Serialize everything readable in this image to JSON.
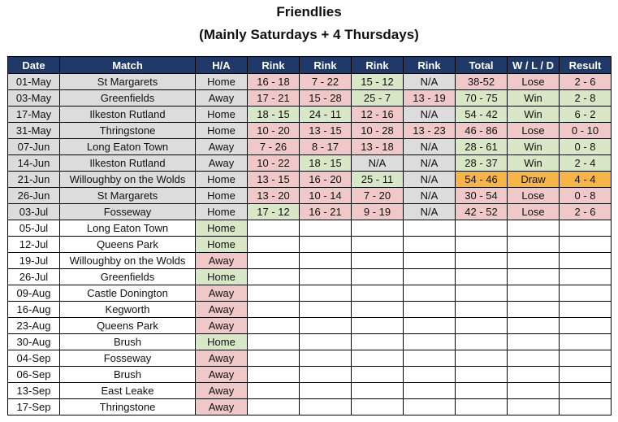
{
  "title": "Friendlies",
  "subtitle": "(Mainly Saturdays + 4 Thursdays)",
  "columns": [
    "Date",
    "Match",
    "H/A",
    "Rink",
    "Rink",
    "Rink",
    "Rink",
    "Total",
    "W / L / D",
    "Result"
  ],
  "played": [
    {
      "date": "01-May",
      "match": "St Margarets",
      "ha": "Home",
      "r1": "16 - 18",
      "r2": "7 - 22",
      "r3": "15 - 12",
      "r4": "N/A",
      "total": "38-52",
      "wld": "Lose",
      "result": "2 - 6"
    },
    {
      "date": "03-May",
      "match": "Greenfields",
      "ha": "Away",
      "r1": "17 - 21",
      "r2": "15 - 28",
      "r3": "25 - 7",
      "r4": "13 - 19",
      "total": "70 - 75",
      "wld": "Win",
      "result": "2 - 8"
    },
    {
      "date": "17-May",
      "match": "Ilkeston Rutland",
      "ha": "Home",
      "r1": "18 - 15",
      "r2": "24 - 11",
      "r3": "12 - 16",
      "r4": "N/A",
      "total": "54 - 42",
      "wld": "Win",
      "result": "6 - 2"
    },
    {
      "date": "31-May",
      "match": "Thringstone",
      "ha": "Home",
      "r1": "10 - 20",
      "r2": "13 - 15",
      "r3": "10 - 28",
      "r4": "13 - 23",
      "total": "46 - 86",
      "wld": "Lose",
      "result": "0 - 10"
    },
    {
      "date": "07-Jun",
      "match": "Long Eaton Town",
      "ha": "Away",
      "r1": "7 - 26",
      "r2": "8 - 17",
      "r3": "13 - 18",
      "r4": "N/A",
      "total": "28 - 61",
      "wld": "Win",
      "result": "0 - 8"
    },
    {
      "date": "14-Jun",
      "match": "Ilkeston Rutland",
      "ha": "Away",
      "r1": "10 - 22",
      "r2": "18 - 15",
      "r3": "N/A",
      "r4": "N/A",
      "total": "28 - 37",
      "wld": "Win",
      "result": "2 - 4"
    },
    {
      "date": "21-Jun",
      "match": "Willoughby on the Wolds",
      "ha": "Home",
      "r1": "13 - 15",
      "r2": "16 - 20",
      "r3": "25 - 11",
      "r4": "N/A",
      "total": "54 - 46",
      "wld": "Draw",
      "result": "4 - 4"
    },
    {
      "date": "26-Jun",
      "match": "St Margarets",
      "ha": "Home",
      "r1": "13 - 20",
      "r2": "10 - 14",
      "r3": "7 - 20",
      "r4": "N/A",
      "total": "30 - 54",
      "wld": "Lose",
      "result": "0 - 8"
    },
    {
      "date": "03-Jul",
      "match": "Fosseway",
      "ha": "Home",
      "r1": "17 - 12",
      "r2": "16 - 21",
      "r3": "9 - 19",
      "r4": "N/A",
      "total": "42 - 52",
      "wld": "Lose",
      "result": "2 - 6"
    }
  ],
  "upcoming": [
    {
      "date": "05-Jul",
      "match": "Long Eaton Town",
      "ha": "Home"
    },
    {
      "date": "12-Jul",
      "match": "Queens Park",
      "ha": "Home"
    },
    {
      "date": "19-Jul",
      "match": "Willoughby on the Wolds",
      "ha": "Away"
    },
    {
      "date": "26-Jul",
      "match": "Greenfields",
      "ha": "Home"
    },
    {
      "date": "09-Aug",
      "match": "Castle Donington",
      "ha": "Away"
    },
    {
      "date": "16-Aug",
      "match": "Kegworth",
      "ha": "Away"
    },
    {
      "date": "23-Aug",
      "match": "Queens Park",
      "ha": "Away"
    },
    {
      "date": "30-Aug",
      "match": "Brush",
      "ha": "Home"
    },
    {
      "date": "04-Sep",
      "match": "Fosseway",
      "ha": "Away"
    },
    {
      "date": "06-Sep",
      "match": "Brush",
      "ha": "Away"
    },
    {
      "date": "13-Sep",
      "match": "East Leake",
      "ha": "Away"
    },
    {
      "date": "17-Sep",
      "match": "Thringstone",
      "ha": "Away"
    }
  ],
  "colors": {
    "header_bg": "#1f3a68",
    "home": "#d8e8c6",
    "away": "#f0c8c8",
    "win": "#d8e8c6",
    "lose": "#f0c8c8",
    "draw": "#f7b548",
    "neutral": "#dcdcdc"
  }
}
